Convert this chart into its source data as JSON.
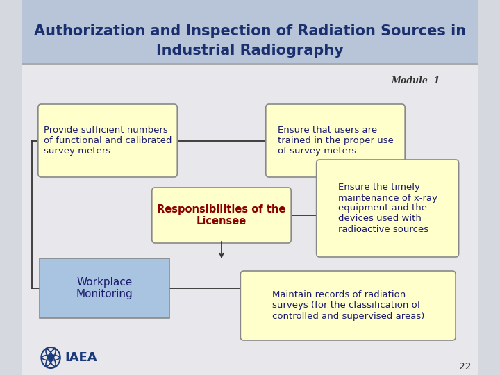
{
  "title_line1": "Authorization and Inspection of Radiation Sources in",
  "title_line2": "Industrial Radiography",
  "title_bg_color": "#b8c4d8",
  "title_text_color": "#1a2f6e",
  "module_text": "Module  1",
  "slide_bg_color": "#d6d8df",
  "content_bg_color": "#e8e8ec",
  "box_fill_yellow": "#ffffcc",
  "box_fill_blue": "#a8c4e0",
  "box_border_color": "#888888",
  "center_box_fill": "#ffffcc",
  "center_box_text_color": "#8b0000",
  "center_box_border": "#888888",
  "box1_text": "Provide sufficient numbers\nof functional and calibrated\nsurvey meters",
  "box2_text": "Ensure that users are\ntrained in the proper use\nof survey meters",
  "center_text": "Responsibilities of the\nLicensee",
  "box3_text": "Ensure the timely\nmaintenance of x-ray\nequipment and the\ndevices used with\nradioactive sources",
  "box4_text": "Workplace\nMonitoring",
  "box5_text": "Maintain records of radiation\nsurveys (for the classification of\ncontrolled and supervised areas)",
  "page_number": "22",
  "iaea_text": "IAEA",
  "line_color": "#333333",
  "arrow_color": "#333333"
}
